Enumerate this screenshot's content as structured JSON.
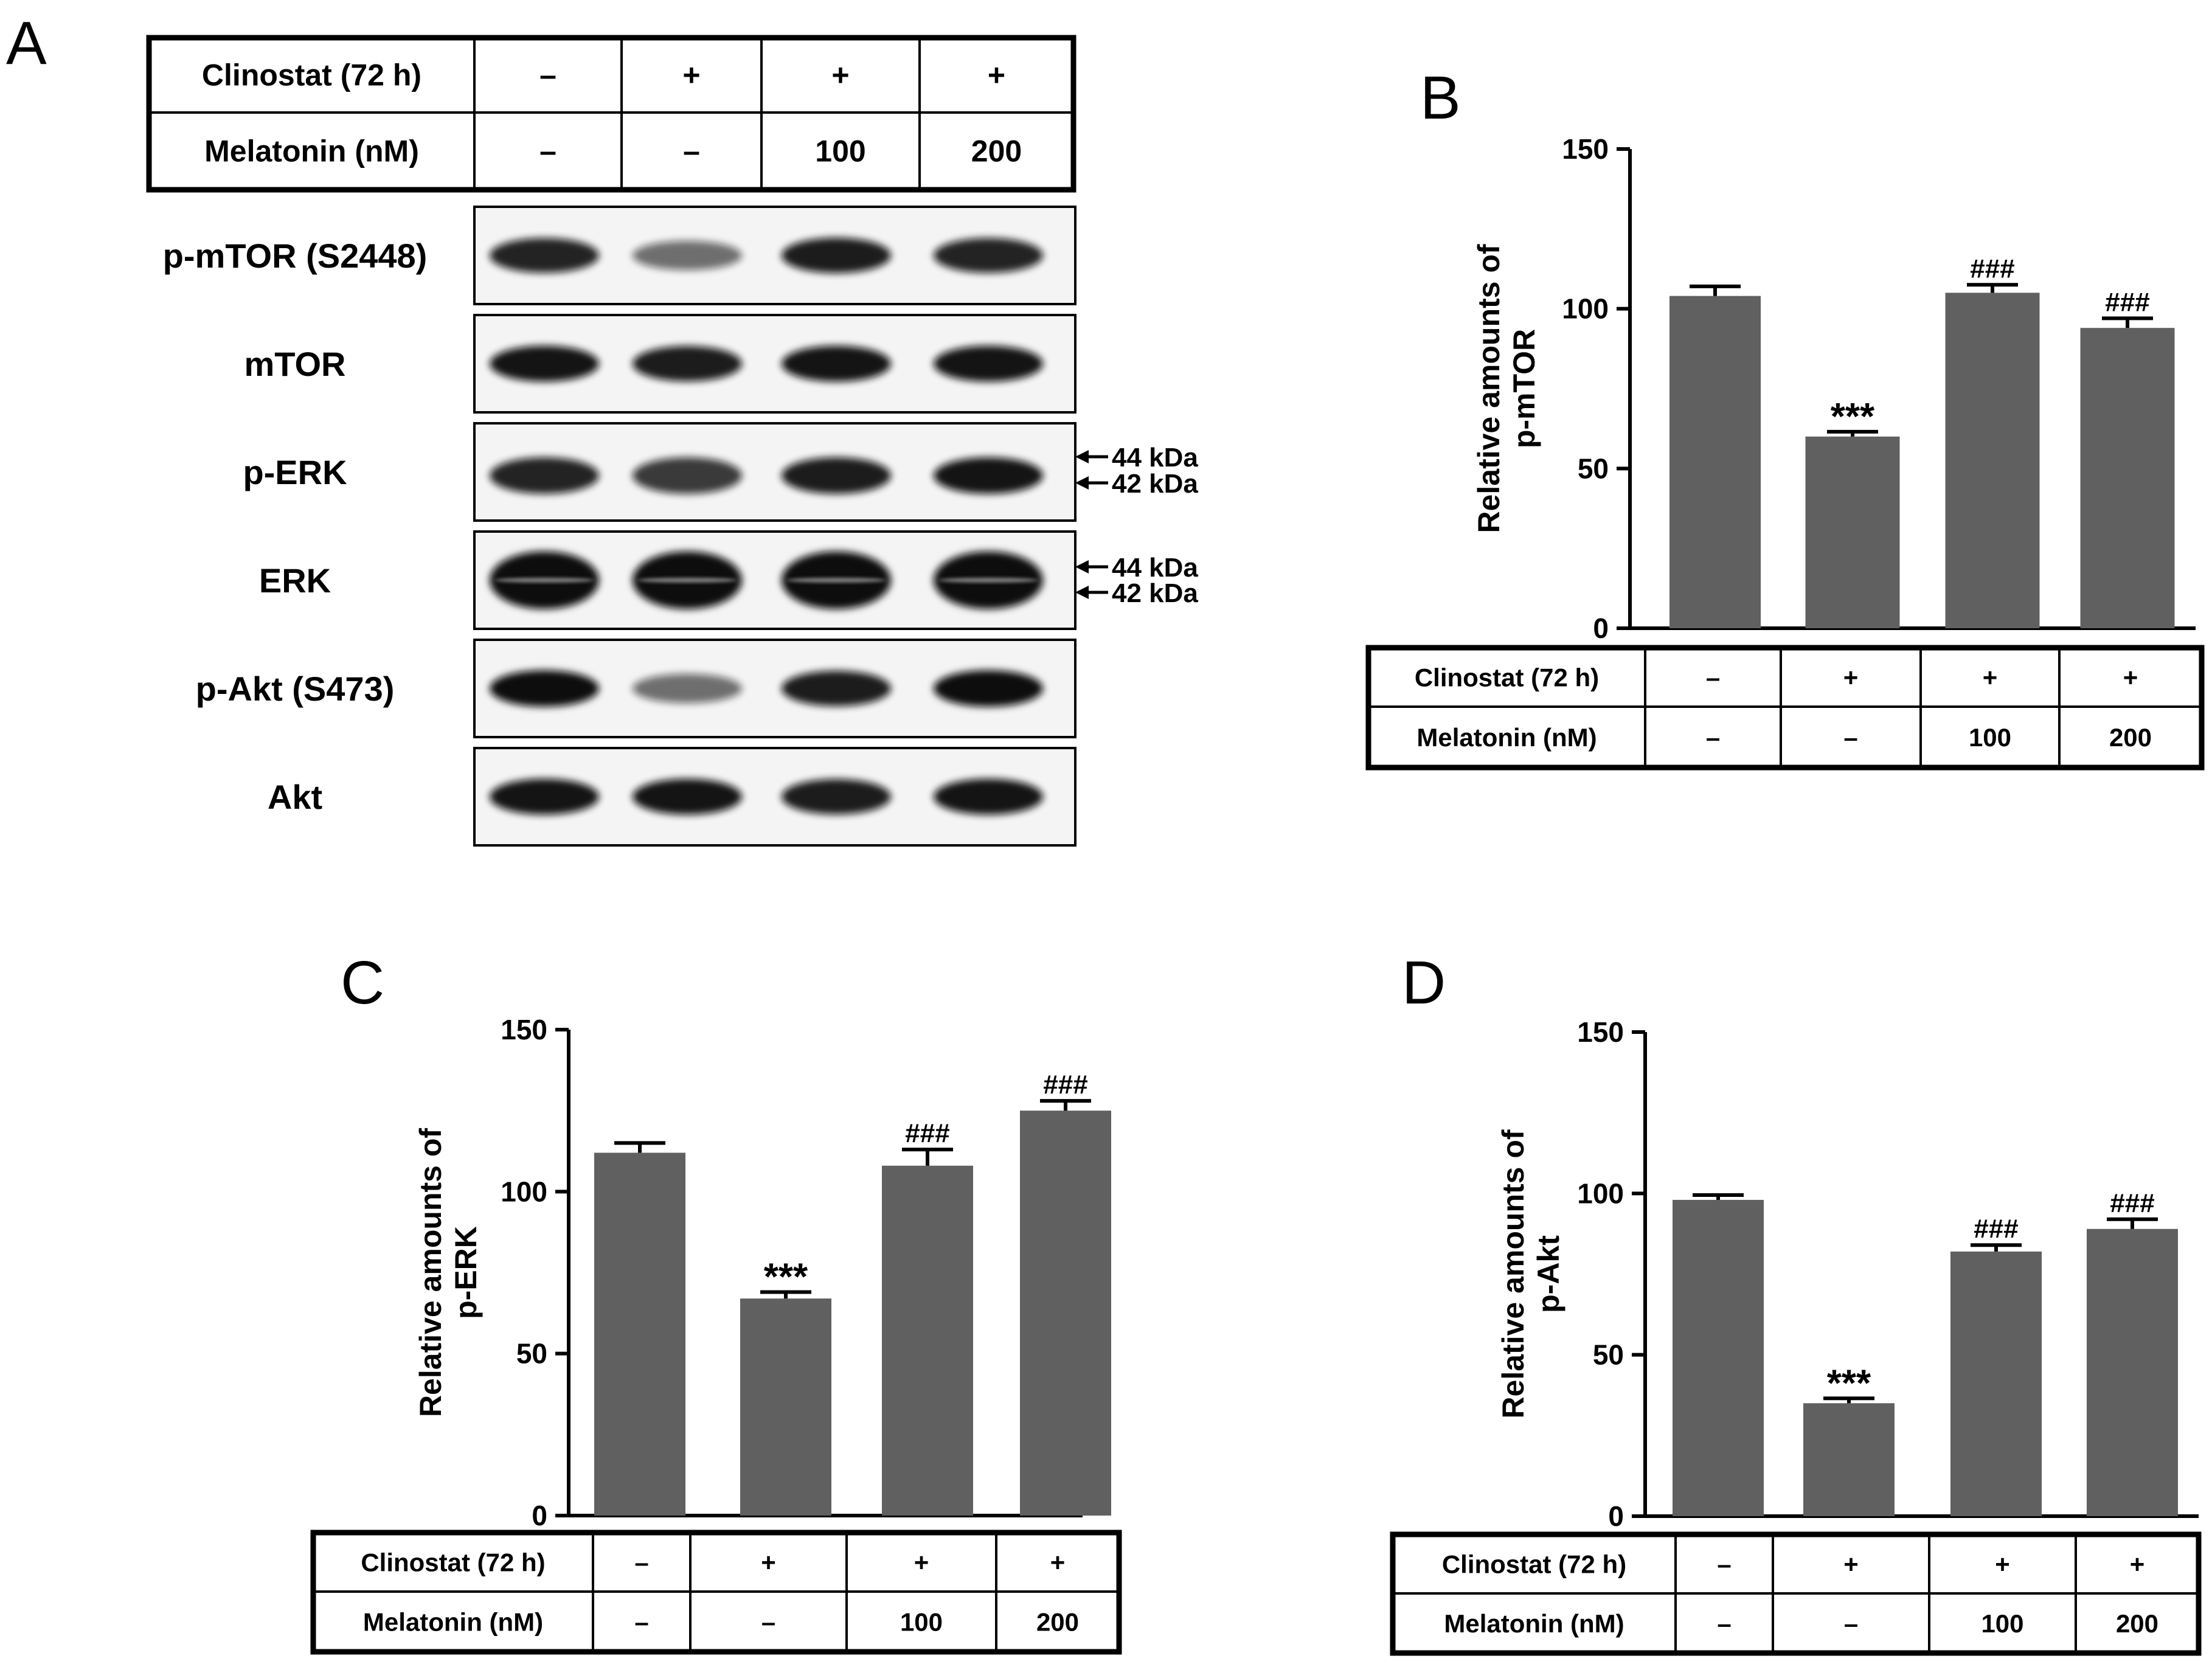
{
  "panel_a": {
    "letter": "A",
    "header": {
      "rows": [
        {
          "label": "Clinostat (72 h)",
          "values": [
            "–",
            "+",
            "+",
            "+"
          ]
        },
        {
          "label": "Melatonin (nM)",
          "values": [
            "–",
            "–",
            "100",
            "200"
          ]
        }
      ]
    },
    "blots": [
      {
        "label": "p-mTOR (S2448)",
        "intensity": [
          0.85,
          0.35,
          0.9,
          0.85
        ]
      },
      {
        "label": "mTOR",
        "intensity": [
          0.95,
          0.9,
          0.95,
          0.95
        ]
      },
      {
        "label": "p-ERK",
        "intensity": [
          0.85,
          0.7,
          0.9,
          0.95
        ],
        "markers": [
          "44 kDa",
          "42 kDa"
        ]
      },
      {
        "label": "ERK",
        "intensity": [
          1.0,
          1.0,
          1.0,
          1.0
        ],
        "markers": [
          "44 kDa",
          "42 kDa"
        ]
      },
      {
        "label": "p-Akt (S473)",
        "intensity": [
          1.0,
          0.35,
          0.9,
          1.0
        ]
      },
      {
        "label": "Akt",
        "intensity": [
          0.95,
          0.95,
          0.9,
          0.95
        ]
      }
    ]
  },
  "chart_data": [
    {
      "type": "bar",
      "panel": "B",
      "categories": [
        "1",
        "2",
        "3",
        "4"
      ],
      "values": [
        104,
        60,
        105,
        94
      ],
      "errors": [
        3,
        1.5,
        2.5,
        3
      ],
      "annotations": [
        "",
        "***",
        "###",
        "###"
      ],
      "ylabel": [
        "Relative amounts of",
        "p-mTOR"
      ],
      "ylim": [
        0,
        150
      ],
      "yticks": [
        0,
        50,
        100,
        150
      ],
      "bar_color": "#606060",
      "condition_table": [
        {
          "label": "Clinostat (72 h)",
          "values": [
            "–",
            "+",
            "+",
            "+"
          ]
        },
        {
          "label": "Melatonin (nM)",
          "values": [
            "–",
            "–",
            "100",
            "200"
          ]
        }
      ]
    },
    {
      "type": "bar",
      "panel": "C",
      "categories": [
        "1",
        "2",
        "3",
        "4"
      ],
      "values": [
        112,
        67,
        108,
        125
      ],
      "errors": [
        3,
        2,
        5,
        3
      ],
      "annotations": [
        "",
        "***",
        "###",
        "###"
      ],
      "ylabel": [
        "Relative amounts of",
        "p-ERK"
      ],
      "ylim": [
        0,
        150
      ],
      "yticks": [
        0,
        50,
        100,
        150
      ],
      "bar_color": "#606060",
      "condition_table": [
        {
          "label": "Clinostat (72 h)",
          "values": [
            "–",
            "+",
            "+",
            "+"
          ]
        },
        {
          "label": "Melatonin (nM)",
          "values": [
            "–",
            "–",
            "100",
            "200"
          ]
        }
      ]
    },
    {
      "type": "bar",
      "panel": "D",
      "categories": [
        "1",
        "2",
        "3",
        "4"
      ],
      "values": [
        98,
        35,
        82,
        89
      ],
      "errors": [
        1.5,
        1.5,
        2,
        3
      ],
      "annotations": [
        "",
        "***",
        "###",
        "###"
      ],
      "ylabel": [
        "Relative amounts of",
        "p-Akt"
      ],
      "ylim": [
        0,
        150
      ],
      "yticks": [
        0,
        50,
        100,
        150
      ],
      "bar_color": "#606060",
      "condition_table": [
        {
          "label": "Clinostat (72 h)",
          "values": [
            "–",
            "+",
            "+",
            "+"
          ]
        },
        {
          "label": "Melatonin (nM)",
          "values": [
            "–",
            "–",
            "100",
            "200"
          ]
        }
      ]
    }
  ]
}
